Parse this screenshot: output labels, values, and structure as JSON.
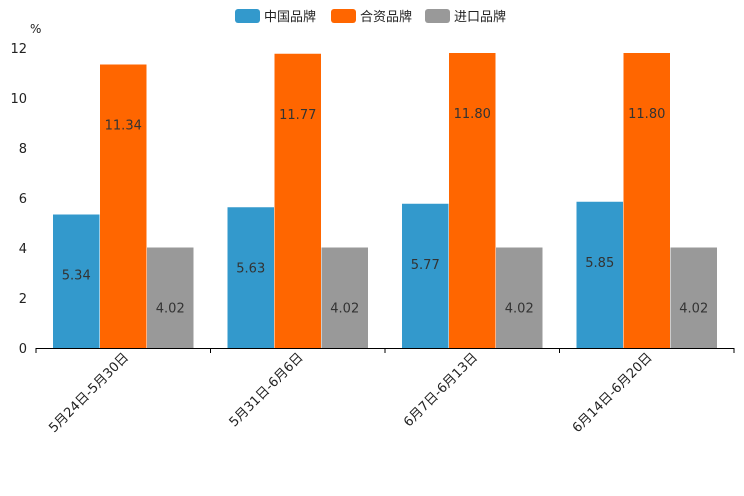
{
  "chart_data": {
    "type": "bar",
    "unit": "%",
    "categories": [
      "5月24日-5月30日",
      "5月31日-6月6日",
      "6月7日-6月13日",
      "6月14日-6月20日"
    ],
    "series": [
      {
        "name": "中国品牌",
        "color": "#3399cc",
        "values": [
          5.34,
          5.63,
          5.77,
          5.85
        ],
        "labels": [
          "5.34",
          "5.63",
          "5.77",
          "5.85"
        ]
      },
      {
        "name": "合资品牌",
        "color": "#ff6600",
        "values": [
          11.34,
          11.77,
          11.8,
          11.8
        ],
        "labels": [
          "11.34",
          "11.77",
          "11.80",
          "11.80"
        ]
      },
      {
        "name": "进口品牌",
        "color": "#999999",
        "values": [
          4.02,
          4.02,
          4.02,
          4.02
        ],
        "labels": [
          "4.02",
          "4.02",
          "4.02",
          "4.02"
        ]
      }
    ],
    "yticks": [
      "0",
      "2",
      "4",
      "6",
      "8",
      "10",
      "12"
    ],
    "ylim": [
      0,
      12
    ],
    "legend_position": "top-center",
    "grid": false
  }
}
